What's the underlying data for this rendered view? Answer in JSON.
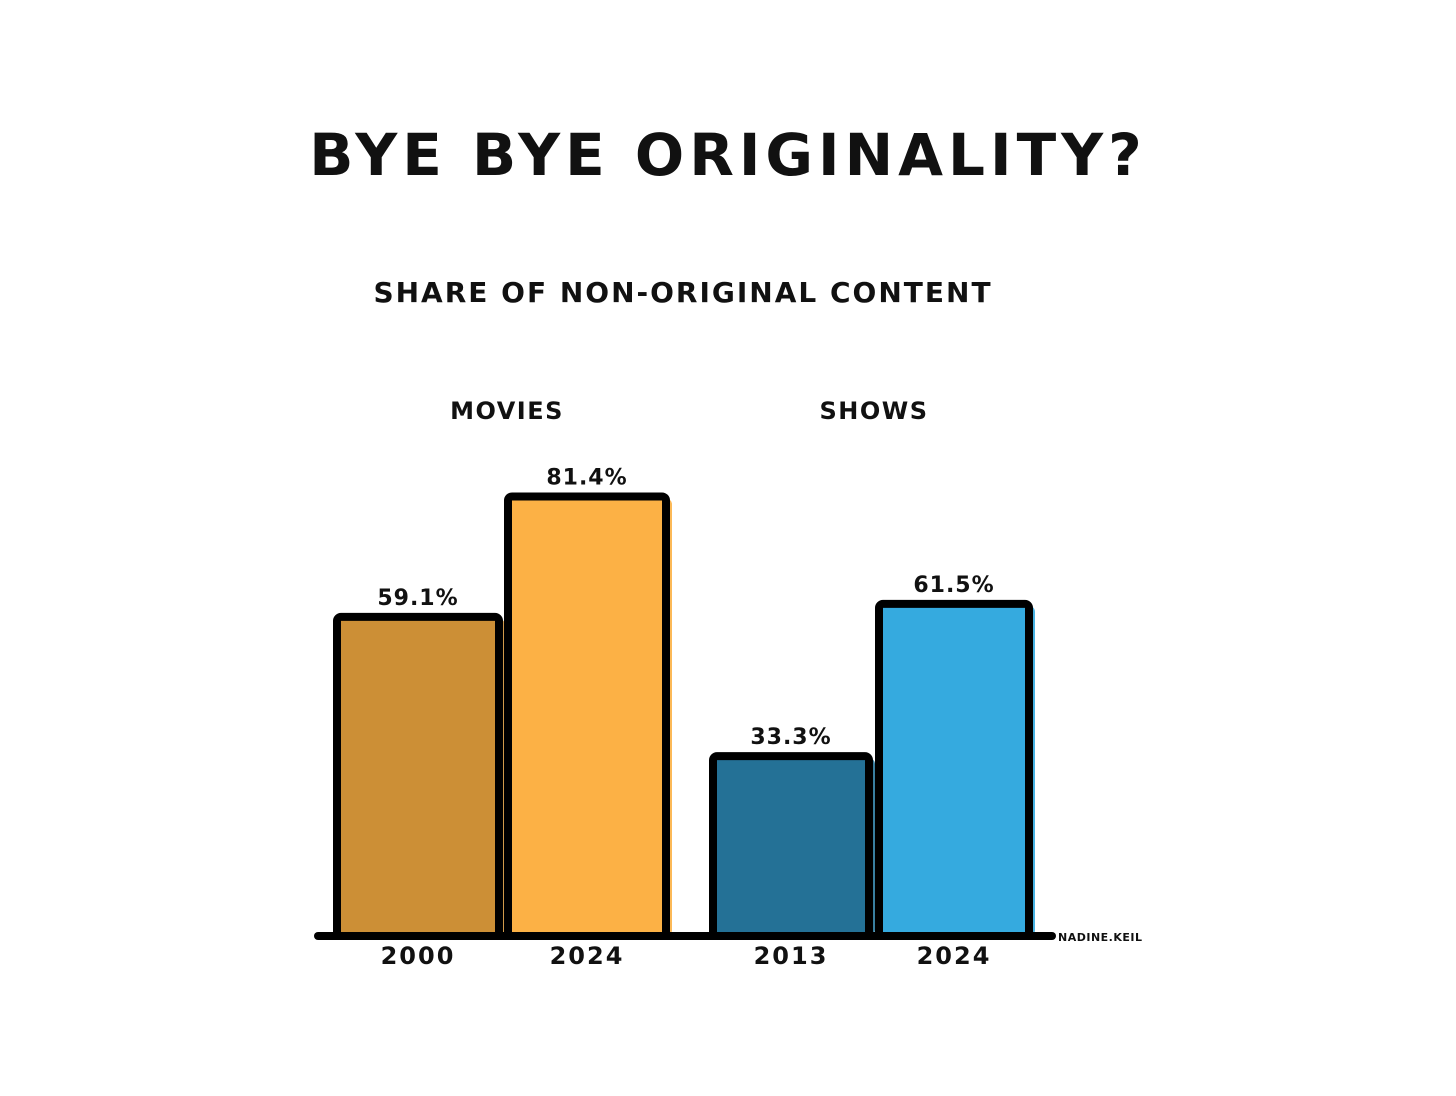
{
  "chart_data": {
    "type": "bar",
    "title": "BYE BYE ORIGINALITY?",
    "subtitle": "SHARE OF NON-ORIGINAL CONTENT",
    "value_suffix": "%",
    "ylim": [
      0,
      100
    ],
    "grid": false,
    "credit": "NADINE.KEIL",
    "groups": [
      {
        "name": "MOVIES",
        "bars": [
          {
            "category": "2000",
            "value": 59.1,
            "label": "59.1%",
            "color": "#CC8F36"
          },
          {
            "category": "2024",
            "value": 81.4,
            "label": "81.4%",
            "color": "#FCB145"
          }
        ]
      },
      {
        "name": "SHOWS",
        "bars": [
          {
            "category": "2013",
            "value": 33.3,
            "label": "33.3%",
            "color": "#247196"
          },
          {
            "category": "2024",
            "value": 61.5,
            "label": "61.5%",
            "color": "#35AADF"
          }
        ]
      }
    ]
  }
}
